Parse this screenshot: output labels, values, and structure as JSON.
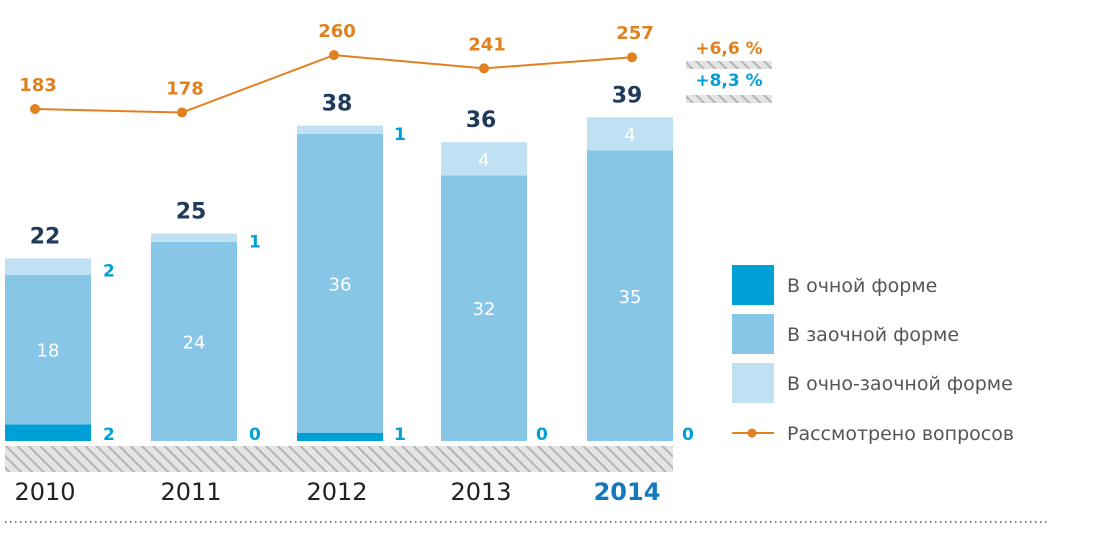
{
  "chart_data": {
    "type": "bar",
    "stacked": true,
    "categories": [
      "2010",
      "2011",
      "2012",
      "2013",
      "2014"
    ],
    "highlighted_category": "2014",
    "series": [
      {
        "name": "В очной форме",
        "values": [
          2,
          0,
          1,
          0,
          0
        ],
        "color": "#00a0d6"
      },
      {
        "name": "В заочной форме",
        "values": [
          18,
          24,
          36,
          32,
          35
        ],
        "color": "#88c6e8"
      },
      {
        "name": "В очно-заочной форме",
        "values": [
          2,
          1,
          1,
          4,
          4
        ],
        "color": "#c0e0f4"
      }
    ],
    "totals": [
      "22",
      "25",
      "38",
      "36",
      "39"
    ],
    "line_series": {
      "name": "Рассмотрено вопросов",
      "values": [
        183,
        178,
        260,
        241,
        257
      ],
      "color": "#e0801e"
    },
    "growth": [
      {
        "label": "+6,6 %",
        "color": "#e0801e"
      },
      {
        "label": "+8,3 %",
        "color": "#00a0d6"
      }
    ],
    "colors": {
      "total_text": "#1f3a5a",
      "year_text": "#222222",
      "highlight_year": "#1577bd",
      "hatch": "#c8c8c8",
      "legend_text": "#555555",
      "segment_label": "#ffffff"
    }
  }
}
